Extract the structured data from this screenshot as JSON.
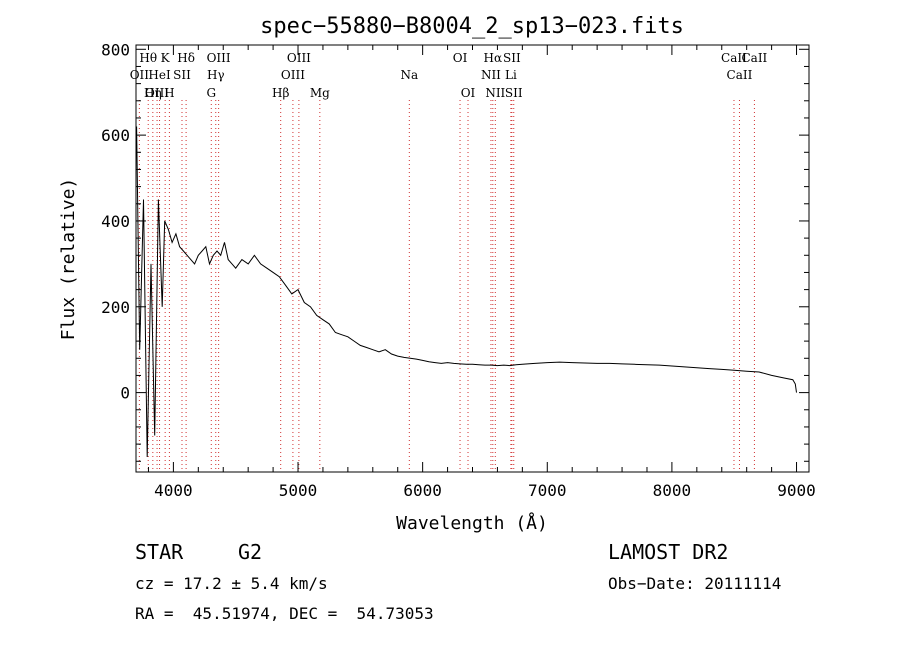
{
  "chart_data": {
    "type": "line",
    "title": "spec−55880−B8004_2_sp13−023.fits",
    "xlabel": "Wavelength (Å)",
    "ylabel": "Flux (relative)",
    "xlim": [
      3700,
      9100
    ],
    "ylim": [
      -185,
      810
    ],
    "xticks": [
      4000,
      5000,
      6000,
      7000,
      8000,
      9000
    ],
    "yticks": [
      0,
      200,
      400,
      600,
      800
    ],
    "grid": false,
    "legend": "none",
    "series": [
      {
        "color": "#000000",
        "x": [
          3705,
          3730,
          3760,
          3790,
          3820,
          3850,
          3880,
          3910,
          3930,
          3960,
          3990,
          4020,
          4050,
          4080,
          4110,
          4140,
          4170,
          4200,
          4230,
          4260,
          4290,
          4320,
          4350,
          4380,
          4410,
          4440,
          4470,
          4500,
          4550,
          4600,
          4650,
          4700,
          4750,
          4800,
          4850,
          4900,
          4950,
          5000,
          5050,
          5100,
          5150,
          5200,
          5250,
          5300,
          5350,
          5400,
          5450,
          5500,
          5550,
          5600,
          5650,
          5700,
          5750,
          5800,
          5850,
          5900,
          5950,
          6000,
          6050,
          6100,
          6150,
          6200,
          6250,
          6300,
          6350,
          6400,
          6450,
          6500,
          6550,
          6600,
          6650,
          6700,
          6750,
          6800,
          6900,
          7000,
          7100,
          7200,
          7300,
          7400,
          7500,
          7600,
          7700,
          7800,
          7900,
          8000,
          8100,
          8200,
          8300,
          8400,
          8500,
          8600,
          8700,
          8800,
          8900,
          8970,
          8990,
          9000
        ],
        "y": [
          620,
          100,
          450,
          -150,
          300,
          -100,
          450,
          200,
          400,
          380,
          350,
          370,
          340,
          330,
          320,
          310,
          300,
          320,
          330,
          340,
          300,
          320,
          330,
          320,
          350,
          310,
          300,
          290,
          310,
          300,
          320,
          300,
          290,
          280,
          270,
          250,
          230,
          240,
          210,
          200,
          180,
          170,
          160,
          140,
          135,
          130,
          120,
          110,
          105,
          100,
          95,
          100,
          90,
          85,
          82,
          80,
          78,
          75,
          72,
          70,
          68,
          70,
          68,
          67,
          66,
          66,
          65,
          64,
          64,
          63,
          64,
          63,
          65,
          66,
          68,
          70,
          71,
          70,
          69,
          68,
          68,
          67,
          66,
          65,
          64,
          62,
          60,
          58,
          56,
          54,
          52,
          50,
          48,
          40,
          34,
          30,
          20,
          0
        ]
      }
    ],
    "lines": [
      {
        "label": "Hθ",
        "wl": 3798
      },
      {
        "label": "K",
        "wl": 3934
      },
      {
        "label": "Hδ",
        "wl": 4102
      },
      {
        "label": "OIII",
        "wl": 4363
      },
      {
        "label": "OIII",
        "wl": 5007
      },
      {
        "label": "OI",
        "wl": 6300
      },
      {
        "label": "Hα",
        "wl": 6563
      },
      {
        "label": "SII",
        "wl": 6716
      },
      {
        "label": "CaII",
        "wl": 8662
      },
      {
        "label": "OII",
        "wl": 3727
      },
      {
        "label": "HeI",
        "wl": 3889
      },
      {
        "label": "SII",
        "wl": 4069
      },
      {
        "label": "Hγ",
        "wl": 4340
      },
      {
        "label": "OIII",
        "wl": 4959
      },
      {
        "label": "Na",
        "wl": 5893
      },
      {
        "label": "NII",
        "wl": 6548
      },
      {
        "label": "Li",
        "wl": 6708
      },
      {
        "label": "CaII",
        "wl": 8542
      },
      {
        "label": "OIII",
        "wl": 3869
      },
      {
        "label": "Hη",
        "wl": 3835
      },
      {
        "label": "H",
        "wl": 3968
      },
      {
        "label": "G",
        "wl": 4304
      },
      {
        "label": "Hβ",
        "wl": 4861
      },
      {
        "label": "Mg",
        "wl": 5175
      },
      {
        "label": "OI",
        "wl": 6364
      },
      {
        "label": "NII",
        "wl": 6583
      },
      {
        "label": "SII",
        "wl": 6731
      },
      {
        "label": "CaII",
        "wl": 8498
      }
    ]
  },
  "info": {
    "object_type": "STAR",
    "subclass": "G2",
    "survey": "LAMOST DR2",
    "cz": "cz = 17.2 ± 5.4 km/s",
    "obs_date": "Obs−Date: 20111114",
    "coords": "RA =  45.51974, DEC =  54.73053"
  }
}
